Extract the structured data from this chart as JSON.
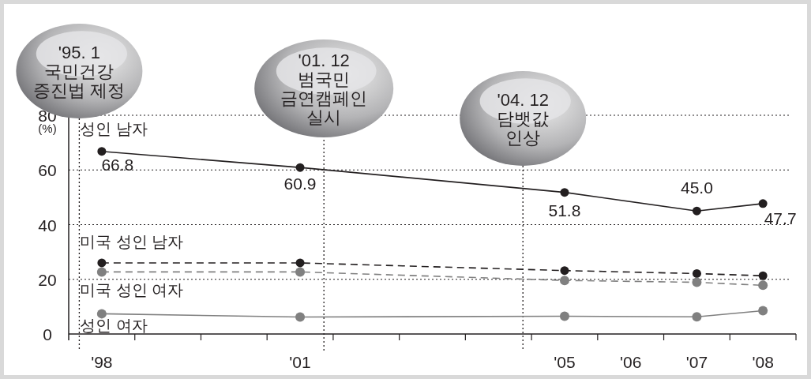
{
  "chart_data": {
    "type": "line",
    "ylabel": "(%)",
    "x": [
      1998,
      2001,
      2005,
      2007,
      2008
    ],
    "xlim": [
      1997.5,
      2008.5
    ],
    "xticks": [
      {
        "value": 1998,
        "label": "'98"
      },
      {
        "value": 1998.5,
        "label": null
      },
      {
        "value": 1999.5,
        "label": null
      },
      {
        "value": 2000.5,
        "label": null
      },
      {
        "value": 2001,
        "label": "'01"
      },
      {
        "value": 2001.5,
        "label": null
      },
      {
        "value": 2002.5,
        "label": null
      },
      {
        "value": 2003.5,
        "label": null
      },
      {
        "value": 2004.5,
        "label": null
      },
      {
        "value": 2005,
        "label": "'05"
      },
      {
        "value": 2005.5,
        "label": null
      },
      {
        "value": 2006,
        "label": "'06"
      },
      {
        "value": 2006.5,
        "label": null
      },
      {
        "value": 2007,
        "label": "'07"
      },
      {
        "value": 2007.5,
        "label": null
      },
      {
        "value": 2008,
        "label": "'08"
      },
      {
        "value": 2008.5,
        "label": null
      }
    ],
    "ylim": [
      0,
      80
    ],
    "yticks": [
      0,
      20,
      40,
      60,
      80
    ],
    "grid": "y",
    "marker": "circle",
    "series": [
      {
        "name": "성인 남자",
        "color": "#231f20",
        "line_style": "solid",
        "values": [
          66.8,
          60.9,
          51.8,
          45.0,
          47.7
        ],
        "value_labels": [
          "66.8",
          "60.9",
          "51.8",
          "45.0",
          "47.7"
        ]
      },
      {
        "name": "미국 성인 남자",
        "color": "#231f20",
        "line_style": "dashed",
        "values": [
          26.0,
          26.0,
          23.2,
          22.1,
          21.3
        ]
      },
      {
        "name": "미국 성인 여자",
        "color": "#808080",
        "line_style": "dashed",
        "values": [
          22.7,
          22.7,
          19.6,
          18.9,
          17.8
        ]
      },
      {
        "name": "성인 여자",
        "color": "#808080",
        "line_style": "solid",
        "values": [
          7.4,
          6.2,
          6.5,
          6.3,
          8.5
        ]
      }
    ],
    "ref_lines": [
      {
        "axis": "x",
        "value": 1997.66,
        "label": "'95. 1\n국민건강\n증진법 제정",
        "line_style": "dotted"
      },
      {
        "axis": "x",
        "value": 2001.36,
        "label": "'01. 12\n범국민\n금연캠페인\n실시",
        "line_style": "dotted"
      },
      {
        "axis": "x",
        "value": 2004.37,
        "label": "'04. 12\n담뱃값\n인상",
        "line_style": "dotted"
      }
    ]
  }
}
